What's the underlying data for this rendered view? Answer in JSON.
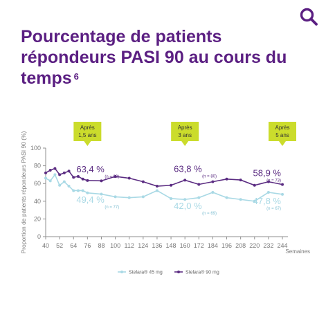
{
  "header": {
    "search_icon": "search-icon",
    "title": "Pourcentage de patients répondeurs PASI 90 au cours du temps",
    "footnote": "6"
  },
  "colors": {
    "title": "#5b1f82",
    "series_45": "#a9d9e5",
    "series_90": "#5b2c82",
    "callout": "#cbdc2c",
    "axis": "#8f8f8f",
    "tick": "#7a7a7a"
  },
  "chart_data": {
    "type": "line",
    "title": "",
    "ylabel": "Proportion de patients répondeurs PASI 90 (%)",
    "xlabel": "Semaines",
    "ylim": [
      0,
      100
    ],
    "yticks": [
      0,
      20,
      40,
      60,
      80,
      100
    ],
    "xlim": [
      40,
      244
    ],
    "xticks": [
      40,
      52,
      64,
      76,
      88,
      100,
      112,
      124,
      136,
      148,
      160,
      172,
      184,
      196,
      208,
      220,
      232,
      244
    ],
    "grid": false,
    "legend_position": "bottom-center",
    "series": [
      {
        "name": "Stelara® 45 mg",
        "color": "#a9d9e5",
        "x": [
          40,
          44,
          48,
          52,
          56,
          60,
          64,
          68,
          72,
          76,
          88,
          100,
          112,
          124,
          136,
          148,
          160,
          172,
          184,
          196,
          208,
          220,
          232,
          244
        ],
        "y": [
          66,
          63,
          70,
          58,
          62,
          57,
          52,
          52,
          52,
          49.4,
          48,
          45,
          44,
          45,
          52,
          43,
          42.0,
          44,
          50,
          44,
          42,
          40,
          50,
          47.8
        ]
      },
      {
        "name": "Stelara® 90 mg",
        "color": "#5b2c82",
        "x": [
          40,
          44,
          48,
          52,
          56,
          60,
          64,
          68,
          72,
          76,
          88,
          100,
          112,
          124,
          136,
          148,
          160,
          172,
          184,
          196,
          208,
          220,
          232,
          244
        ],
        "y": [
          72,
          75,
          77,
          70,
          72,
          74,
          67,
          68,
          65,
          63.4,
          63,
          68,
          66,
          62,
          57,
          58,
          63.8,
          59,
          62,
          65,
          64,
          58,
          62,
          58.9
        ]
      }
    ],
    "annotations": [
      {
        "x": 76,
        "series": 1,
        "label": "63,4 %",
        "n": "(n = 82)"
      },
      {
        "x": 76,
        "series": 0,
        "label": "49,4 %",
        "n": "(n = 77)"
      },
      {
        "x": 160,
        "series": 1,
        "label": "63,8 %",
        "n": "(n = 80)"
      },
      {
        "x": 160,
        "series": 0,
        "label": "42,0 %",
        "n": "(n = 69)"
      },
      {
        "x": 244,
        "series": 1,
        "label": "58,9 %",
        "n": "(n = 73)"
      },
      {
        "x": 244,
        "series": 0,
        "label": "47,8 %",
        "n": "(n = 67)"
      }
    ],
    "callouts": [
      {
        "x": 76,
        "line1": "Après",
        "line2": "1,5 ans"
      },
      {
        "x": 160,
        "line1": "Après",
        "line2": "3 ans"
      },
      {
        "x": 244,
        "line1": "Après",
        "line2": "5 ans"
      }
    ]
  }
}
